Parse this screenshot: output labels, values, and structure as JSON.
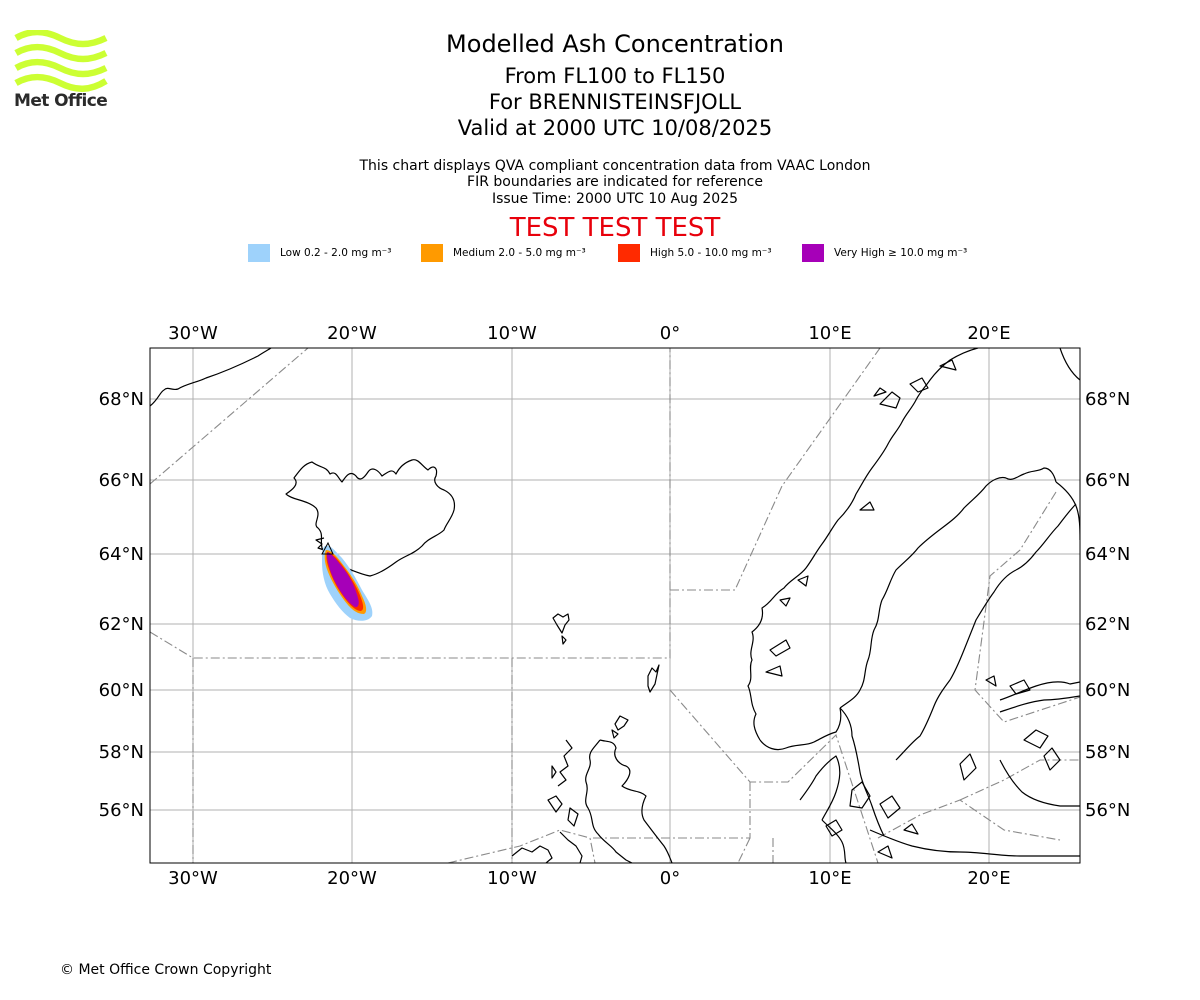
{
  "brand": {
    "logo_text": "Met Office",
    "logo_color": "#ccff33"
  },
  "header": {
    "title": "Modelled Ash Concentration",
    "subtitle_levels": "From FL100 to FL150",
    "subtitle_volcano": "For BRENNISTEINSFJOLL",
    "subtitle_valid": "Valid at 2000 UTC 10/08/2025",
    "note_source": "This chart displays QVA compliant concentration data from VAAC London",
    "note_fir": "FIR boundaries are indicated for reference",
    "note_issue": "Issue Time: 2000 UTC 10 Aug 2025",
    "test_banner": "TEST TEST TEST",
    "test_color": "#e8000b"
  },
  "legend": [
    {
      "label": "Low 0.2 - 2.0 mg m⁻³",
      "color": "#9ed2fb"
    },
    {
      "label": "Medium 2.0 - 5.0 mg m⁻³",
      "color": "#ff9a00"
    },
    {
      "label": "High 5.0 - 10.0 mg m⁻³",
      "color": "#ff2a00"
    },
    {
      "label": "Very High  ≥  10.0 mg m⁻³",
      "color": "#a600b8"
    }
  ],
  "map": {
    "longitude_labels": [
      "30°W",
      "20°W",
      "10°W",
      "0°",
      "10°E",
      "20°E"
    ],
    "latitude_labels": [
      "68°N",
      "66°N",
      "64°N",
      "62°N",
      "60°N",
      "58°N",
      "56°N"
    ],
    "extent": {
      "lon_min": -32.7,
      "lon_max": 25.6,
      "lat_min": 54.5,
      "lat_max": 69.4
    },
    "gridlines": true
  },
  "footer": {
    "copyright": "© Met Office Crown Copyright"
  }
}
